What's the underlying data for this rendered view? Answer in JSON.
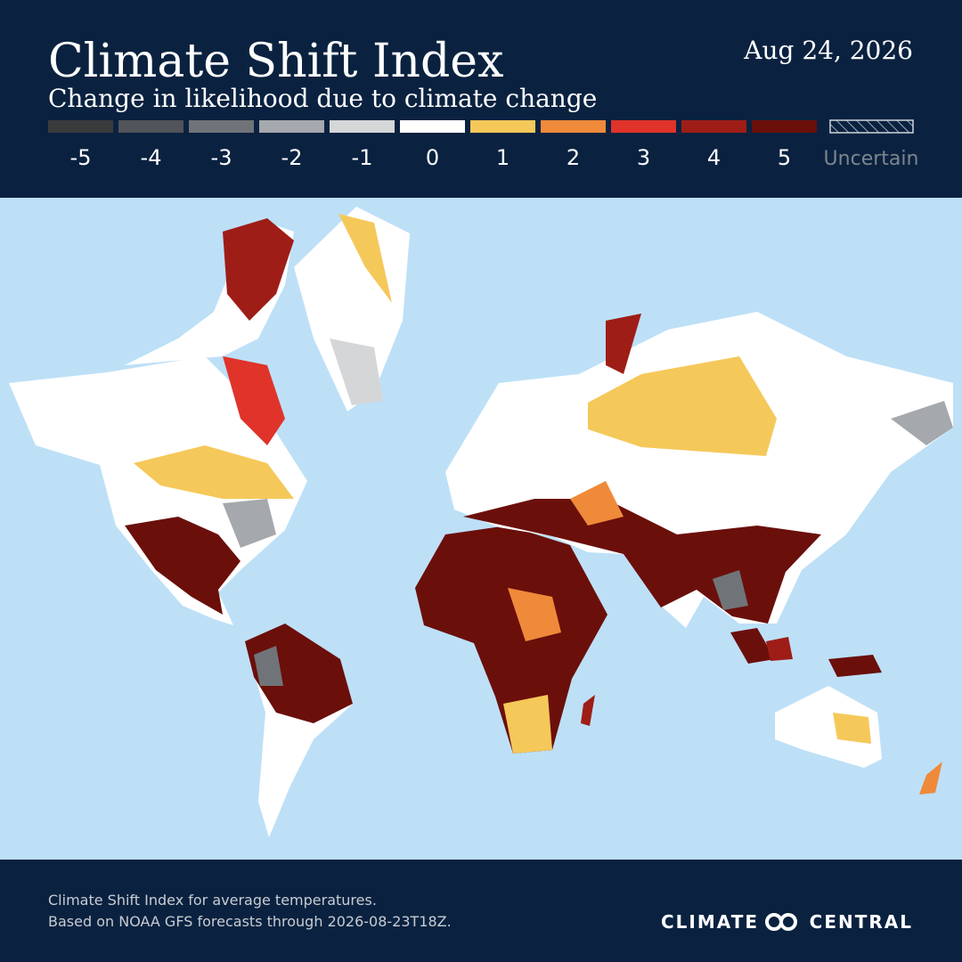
{
  "header": {
    "title": "Climate Shift Index",
    "subtitle": "Change in likelihood due to climate change",
    "date": "Aug 24, 2026"
  },
  "legend": [
    {
      "label": "-5",
      "color": "#3a3b3d"
    },
    {
      "label": "-4",
      "color": "#515458"
    },
    {
      "label": "-3",
      "color": "#707478"
    },
    {
      "label": "-2",
      "color": "#a5a8ac"
    },
    {
      "label": "-1",
      "color": "#d5d6d8"
    },
    {
      "label": "0",
      "color": "#ffffff"
    },
    {
      "label": "1",
      "color": "#f5c85a"
    },
    {
      "label": "2",
      "color": "#ef8a3a"
    },
    {
      "label": "3",
      "color": "#e0332a"
    },
    {
      "label": "4",
      "color": "#9f1d17"
    },
    {
      "label": "5",
      "color": "#6b0f0b"
    }
  ],
  "uncertain": {
    "label": "Uncertain"
  },
  "footer": {
    "line1": "Climate Shift Index for average temperatures.",
    "line2": "Based on NOAA GFS forecasts through 2026-08-23T18Z.",
    "logo_left": "CLIMATE",
    "logo_right": "CENTRAL"
  }
}
